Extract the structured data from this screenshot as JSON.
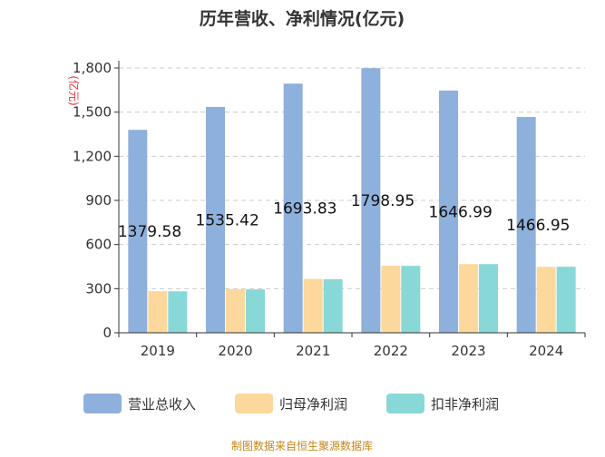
{
  "chart_data": {
    "type": "bar",
    "title": "历年营收、净利情况(亿元)",
    "unit_label": "(亿元)",
    "categories": [
      "2019",
      "2020",
      "2021",
      "2022",
      "2023",
      "2024"
    ],
    "ylim": [
      0,
      1800
    ],
    "yticks": [
      {
        "value": 0,
        "label": "0"
      },
      {
        "value": 300,
        "label": "300"
      },
      {
        "value": 600,
        "label": "600"
      },
      {
        "value": 900,
        "label": "900"
      },
      {
        "value": 1200,
        "label": "1,200"
      },
      {
        "value": 1500,
        "label": "1,500"
      },
      {
        "value": 1800,
        "label": "1,800"
      }
    ],
    "grid": true,
    "legend_position": "bottom",
    "series": [
      {
        "name": "营业总收入",
        "color": "#8eb0dc",
        "values": [
          1379.58,
          1535.42,
          1693.83,
          1798.95,
          1646.99,
          1466.95
        ],
        "data_labels": [
          "1379.58",
          "1535.42",
          "1693.83",
          "1798.95",
          "1646.99",
          "1466.95"
        ]
      },
      {
        "name": "归母净利润",
        "color": "#fcd89c",
        "values": [
          283,
          297,
          366,
          456,
          467,
          448
        ]
      },
      {
        "name": "扣非净利润",
        "color": "#88d8d8",
        "values": [
          282,
          295,
          364,
          455,
          467,
          449
        ]
      }
    ],
    "source": "制图数据来自恒生聚源数据库"
  }
}
